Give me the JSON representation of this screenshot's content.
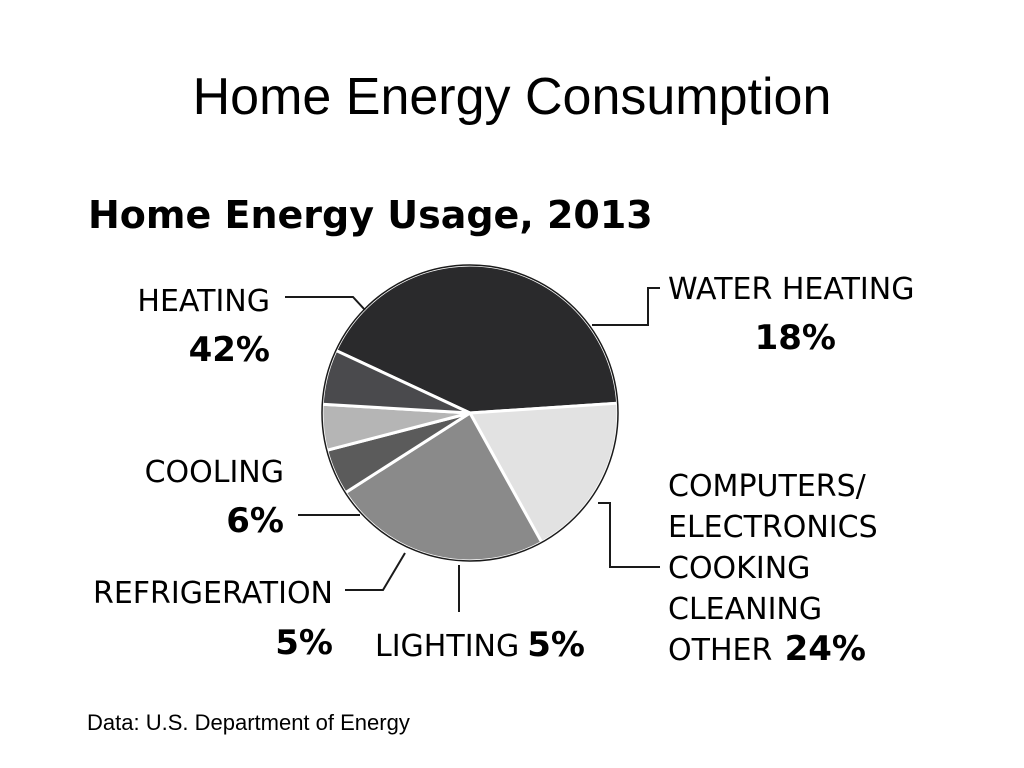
{
  "slide": {
    "title": "Home Energy Consumption"
  },
  "chart_data": {
    "type": "pie",
    "title": "Home Energy Usage, 2013",
    "source": "Data: U.S. Department of Energy",
    "slices": [
      {
        "label_lines": [
          "HEATING"
        ],
        "value": 42,
        "value_label": "42%",
        "color": "#2a2a2c"
      },
      {
        "label_lines": [
          "WATER HEATING"
        ],
        "value": 18,
        "value_label": "18%",
        "color": "#e2e2e2"
      },
      {
        "label_lines": [
          "COMPUTERS/",
          "ELECTRONICS",
          "COOKING",
          "CLEANING",
          "OTHER"
        ],
        "value": 24,
        "value_label": "24%",
        "color": "#8a8a8a"
      },
      {
        "label_lines": [
          "LIGHTING"
        ],
        "value": 5,
        "value_label": "5%",
        "color": "#5b5b5b"
      },
      {
        "label_lines": [
          "REFRIGERATION"
        ],
        "value": 5,
        "value_label": "5%",
        "color": "#b5b5b5"
      },
      {
        "label_lines": [
          "COOLING"
        ],
        "value": 6,
        "value_label": "6%",
        "color": "#4a4a4d"
      }
    ]
  }
}
